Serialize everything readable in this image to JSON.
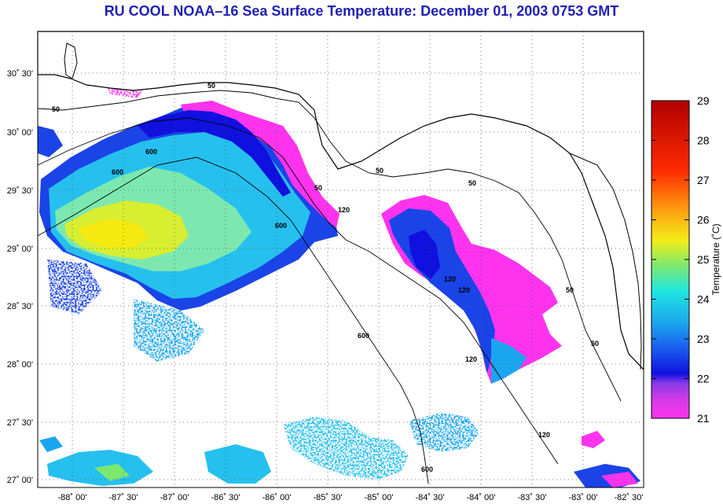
{
  "title": "RU COOL  NOAA–16  Sea Surface Temperature:  December 01, 2003 0753 GMT",
  "map": {
    "lat_ticks": [
      "30˚ 30'",
      "30˚ 00'",
      "29˚ 30'",
      "29˚ 00'",
      "28˚ 30'",
      "28˚ 00'",
      "27˚ 30'",
      "27˚ 00'"
    ],
    "lon_ticks": [
      "-88˚ 00'",
      "-87˚ 30'",
      "-87˚ 00'",
      "-86˚ 30'",
      "-86˚ 00'",
      "-85˚ 30'",
      "-85˚ 00'",
      "-84˚ 30'",
      "-84˚ 00'",
      "-83˚ 30'",
      "-83˚ 00'",
      "-82˚ 30'"
    ],
    "contour_labels": [
      "50",
      "50",
      "50",
      "50",
      "50",
      "50",
      "50",
      "120",
      "120",
      "120",
      "120",
      "120",
      "600",
      "600",
      "600",
      "600",
      "600"
    ],
    "colors": {
      "land": "#ffffff",
      "grid": "#555555",
      "coast": "#000000"
    }
  },
  "colorbar": {
    "title": "Temperature (˚C)",
    "ticks": [
      "29",
      "28",
      "27",
      "26",
      "25",
      "24",
      "23",
      "22",
      "21"
    ],
    "min": 21,
    "max": 29,
    "stops": [
      "#ff33ee",
      "#8a3ae8",
      "#1010e0",
      "#1aa6ee",
      "#1ee6e0",
      "#7ce870",
      "#f2ee18",
      "#ff9a10",
      "#ff2a00",
      "#b00000"
    ]
  }
}
